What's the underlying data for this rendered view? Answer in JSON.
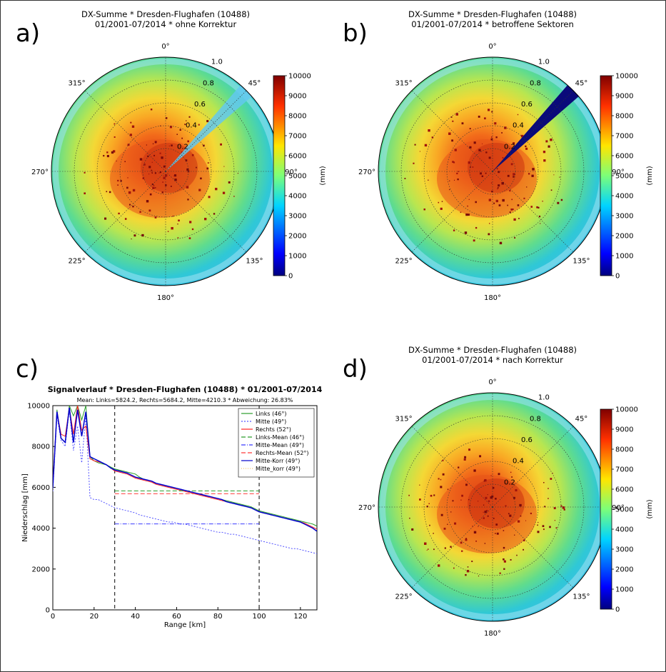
{
  "panels": [
    {
      "letter": "a)",
      "title1": "DX-Summe * Dresden-Flughafen (10488)",
      "title2": "01/2001-07/2014 * ohne Korrektur"
    },
    {
      "letter": "b)",
      "title1": "DX-Summe * Dresden-Flughafen (10488)",
      "title2": "01/2001-07/2014 * betroffene Sektoren"
    },
    {
      "letter": "c)"
    },
    {
      "letter": "d)",
      "title1": "DX-Summe * Dresden-Flughafen (10488)",
      "title2": "01/2001-07/2014 * nach Korrektur"
    }
  ],
  "polar": {
    "angle_labels": [
      "0°",
      "45°",
      "90°",
      "135°",
      "180°",
      "225°",
      "270°",
      "315°"
    ],
    "radius_labels": [
      "0.2",
      "0.4",
      "0.6",
      "0.8",
      "1.0"
    ],
    "colorbar": {
      "label": "(mm)",
      "ticks": [
        "0",
        "1000",
        "2000",
        "3000",
        "4000",
        "5000",
        "6000",
        "7000",
        "8000",
        "9000",
        "10000"
      ]
    }
  },
  "colors": {
    "mean_links": "#2a9d2a",
    "mean_rechts": "#ff3b3b",
    "mean_mitte": "#3a3aff",
    "korr": "#0000cc"
  },
  "chart_data": [
    {
      "type": "heatmap",
      "title": "DX-Summe * Dresden-Flughafen (10488)\n01/2001-07/2014 * ohne Korrektur",
      "colorbar_range": [
        0,
        10000
      ],
      "colorbar_label": "(mm)"
    },
    {
      "type": "heatmap",
      "title": "DX-Summe * Dresden-Flughafen (10488)\n01/2001-07/2014 * betroffene Sektoren",
      "colorbar_range": [
        0,
        10000
      ],
      "colorbar_label": "(mm)"
    },
    {
      "type": "line",
      "title": "Signalverlauf * Dresden-Flughafen (10488) * 01/2001-07/2014",
      "subtitle": "Mean: Links=5824.2, Rechts=5684.2, Mitte=4210.3 * Abweichung: 26.83%",
      "xlabel": "Range [km]",
      "ylabel": "Niederschlag [mm]",
      "xlim": [
        0,
        128
      ],
      "ylim": [
        0,
        10000
      ],
      "xticks": [
        "0",
        "20",
        "40",
        "60",
        "80",
        "100",
        "120"
      ],
      "yticks": [
        "0",
        "2000",
        "4000",
        "6000",
        "8000",
        "10000"
      ],
      "vlines": [
        30,
        100
      ],
      "legend": [
        "Links (46°)",
        "Mitte (49°)",
        "Rechts (52°)",
        "Links-Mean (46°)",
        "Mitte-Mean (49°)",
        "Rechts-Mean (52°)",
        "Mitte-Korr (49°)",
        "Mitte_korr (49°)"
      ],
      "x": [
        0,
        2,
        4,
        6,
        8,
        10,
        12,
        14,
        16,
        18,
        20,
        22,
        24,
        26,
        28,
        30,
        32,
        34,
        36,
        38,
        40,
        42,
        44,
        46,
        48,
        50,
        52,
        54,
        56,
        58,
        60,
        62,
        64,
        66,
        68,
        70,
        72,
        74,
        76,
        78,
        80,
        82,
        84,
        86,
        88,
        90,
        92,
        94,
        96,
        98,
        100,
        102,
        104,
        106,
        108,
        110,
        112,
        114,
        116,
        118,
        120,
        122,
        124,
        126,
        128
      ],
      "series": [
        {
          "name": "Links (46°)",
          "values": [
            6000,
            9800,
            8400,
            8200,
            10000,
            9500,
            10000,
            9300,
            10000,
            7500,
            7300,
            7200,
            7150,
            7100,
            7000,
            6900,
            6850,
            6800,
            6750,
            6700,
            6650,
            6500,
            6400,
            6350,
            6300,
            6200,
            6150,
            6100,
            6050,
            6000,
            5950,
            5900,
            5850,
            5800,
            5750,
            5700,
            5650,
            5600,
            5550,
            5500,
            5450,
            5400,
            5350,
            5300,
            5250,
            5200,
            5150,
            5100,
            5050,
            4950,
            4850,
            4800,
            4750,
            4700,
            4650,
            4600,
            4550,
            4500,
            4450,
            4400,
            4350,
            4300,
            4250,
            4200,
            4100
          ]
        },
        {
          "name": "Mitte (49°)",
          "values": [
            5800,
            9500,
            8300,
            8000,
            9800,
            7800,
            9000,
            7200,
            9500,
            5500,
            5400,
            5400,
            5300,
            5200,
            5100,
            5000,
            4950,
            4900,
            4850,
            4800,
            4750,
            4650,
            4600,
            4550,
            4500,
            4450,
            4400,
            4350,
            4300,
            4300,
            4250,
            4200,
            4200,
            4150,
            4100,
            4050,
            4000,
            3950,
            3900,
            3850,
            3800,
            3800,
            3750,
            3700,
            3700,
            3650,
            3600,
            3550,
            3500,
            3450,
            3400,
            3350,
            3300,
            3250,
            3200,
            3150,
            3100,
            3050,
            3000,
            3000,
            2950,
            2900,
            2850,
            2800,
            2750
          ]
        },
        {
          "name": "Rechts (52°)",
          "values": [
            6200,
            9700,
            8600,
            8500,
            9900,
            8600,
            10000,
            8800,
            9000,
            7400,
            7300,
            7250,
            7200,
            7100,
            6950,
            6800,
            6750,
            6700,
            6650,
            6550,
            6450,
            6400,
            6350,
            6300,
            6250,
            6150,
            6100,
            6050,
            6000,
            5950,
            5900,
            5850,
            5800,
            5750,
            5700,
            5650,
            5600,
            5550,
            5500,
            5450,
            5400,
            5350,
            5300,
            5250,
            5200,
            5150,
            5100,
            5050,
            5000,
            4900,
            4800,
            4750,
            4700,
            4650,
            4600,
            4550,
            4500,
            4450,
            4400,
            4350,
            4300,
            4250,
            4150,
            4050,
            3950
          ]
        },
        {
          "name": "Links-Mean (46°)",
          "values": [
            5824.2,
            5824.2
          ],
          "x": [
            30,
            100
          ]
        },
        {
          "name": "Mitte-Mean (49°)",
          "values": [
            4210.3,
            4210.3
          ],
          "x": [
            30,
            100
          ]
        },
        {
          "name": "Rechts-Mean (52°)",
          "values": [
            5684.2,
            5684.2
          ],
          "x": [
            30,
            100
          ]
        },
        {
          "name": "Mitte-Korr (49°)",
          "values": [
            6000,
            9700,
            8400,
            8200,
            9900,
            8200,
            9800,
            8500,
            9700,
            7500,
            7400,
            7300,
            7200,
            7100,
            6950,
            6850,
            6800,
            6750,
            6700,
            6600,
            6500,
            6450,
            6400,
            6350,
            6300,
            6200,
            6150,
            6100,
            6050,
            6000,
            5950,
            5900,
            5850,
            5800,
            5750,
            5700,
            5650,
            5600,
            5550,
            5500,
            5450,
            5400,
            5300,
            5250,
            5200,
            5150,
            5100,
            5050,
            5000,
            4900,
            4800,
            4750,
            4700,
            4650,
            4600,
            4550,
            4500,
            4450,
            4400,
            4350,
            4300,
            4200,
            4100,
            4000,
            3850
          ]
        }
      ]
    },
    {
      "type": "heatmap",
      "title": "DX-Summe * Dresden-Flughafen (10488)\n01/2001-07/2014 * nach Korrektur",
      "colorbar_range": [
        0,
        10000
      ],
      "colorbar_label": "(mm)"
    }
  ],
  "linechart_text": {
    "title": "Signalverlauf * Dresden-Flughafen (10488) * 01/2001-07/2014",
    "subtitle": "Mean: Links=5824.2, Rechts=5684.2, Mitte=4210.3 * Abweichung: 26.83%",
    "xlabel": "Range [km]",
    "ylabel": "Niederschlag [mm]"
  }
}
